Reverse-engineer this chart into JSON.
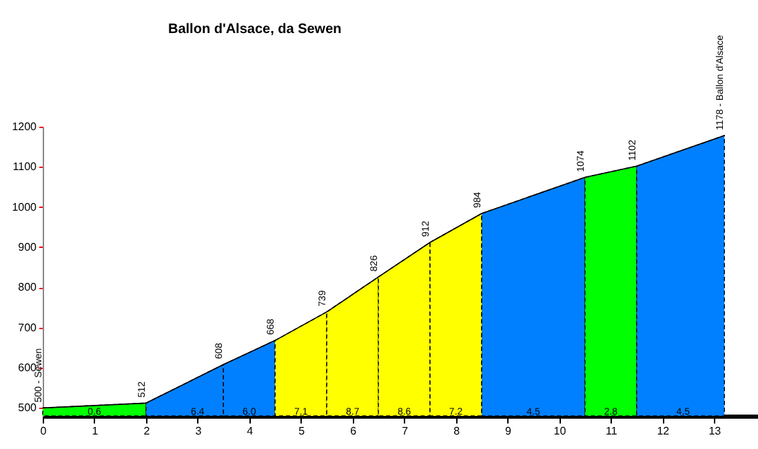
{
  "chart_data": {
    "type": "area",
    "title": "Ballon d'Alsace, da Sewen",
    "xlim": [
      0,
      13.85
    ],
    "xticks": [
      0,
      1,
      2,
      3,
      4,
      5,
      6,
      7,
      8,
      9,
      10,
      11,
      12,
      13
    ],
    "ylim": [
      480,
      1200
    ],
    "yticks": [
      500,
      600,
      700,
      800,
      900,
      1000,
      1100,
      1200
    ],
    "series": [
      {
        "color": "#00ff00",
        "x": [
          0,
          2
        ],
        "values": [
          500,
          512
        ],
        "value_labels": [
          "500 - Sewen",
          "512"
        ]
      },
      {
        "color": "#0080ff",
        "x": [
          2,
          3.5
        ],
        "values": [
          512,
          608
        ],
        "value_labels": [
          null,
          "608"
        ]
      },
      {
        "color": "#0080ff",
        "x": [
          3.5,
          4.5
        ],
        "values": [
          608,
          668
        ],
        "value_labels": [
          null,
          "668"
        ]
      },
      {
        "color": "#ffff00",
        "x": [
          4.5,
          5.5
        ],
        "values": [
          668,
          739
        ],
        "value_labels": [
          null,
          "739"
        ]
      },
      {
        "color": "#ffff00",
        "x": [
          5.5,
          6.5
        ],
        "values": [
          739,
          826
        ],
        "value_labels": [
          null,
          "826"
        ]
      },
      {
        "color": "#ffff00",
        "x": [
          6.5,
          7.5
        ],
        "values": [
          826,
          912
        ],
        "value_labels": [
          null,
          "912"
        ]
      },
      {
        "color": "#ffff00",
        "x": [
          7.5,
          8.5
        ],
        "values": [
          912,
          984
        ],
        "value_labels": [
          null,
          "984"
        ]
      },
      {
        "color": "#0080ff",
        "x": [
          8.5,
          10.5
        ],
        "values": [
          984,
          1074
        ],
        "value_labels": [
          null,
          "1074"
        ]
      },
      {
        "color": "#00ff00",
        "x": [
          10.5,
          11.5
        ],
        "values": [
          1074,
          1102
        ],
        "value_labels": [
          null,
          "1102"
        ]
      },
      {
        "color": "#0080ff",
        "x": [
          11.5,
          13.2
        ],
        "values": [
          1102,
          1178
        ],
        "value_labels": [
          null,
          "1178 - Ballon d'Alsace"
        ]
      }
    ],
    "annotations": [
      {
        "text": "0.6",
        "x": 1,
        "y": 490
      },
      {
        "text": "6.4",
        "x": 3,
        "y": 490
      },
      {
        "text": "6.0",
        "x": 4,
        "y": 490
      },
      {
        "text": "7.1",
        "x": 5,
        "y": 490
      },
      {
        "text": "8.7",
        "x": 6,
        "y": 490
      },
      {
        "text": "8.6",
        "x": 7,
        "y": 490
      },
      {
        "text": "7.2",
        "x": 8,
        "y": 490
      },
      {
        "text": "4.5",
        "x": 9.5,
        "y": 490
      },
      {
        "text": "2.8",
        "x": 11,
        "y": 490
      },
      {
        "text": "4.5",
        "x": 12.4,
        "y": 490
      }
    ],
    "line_style": "dashed"
  }
}
